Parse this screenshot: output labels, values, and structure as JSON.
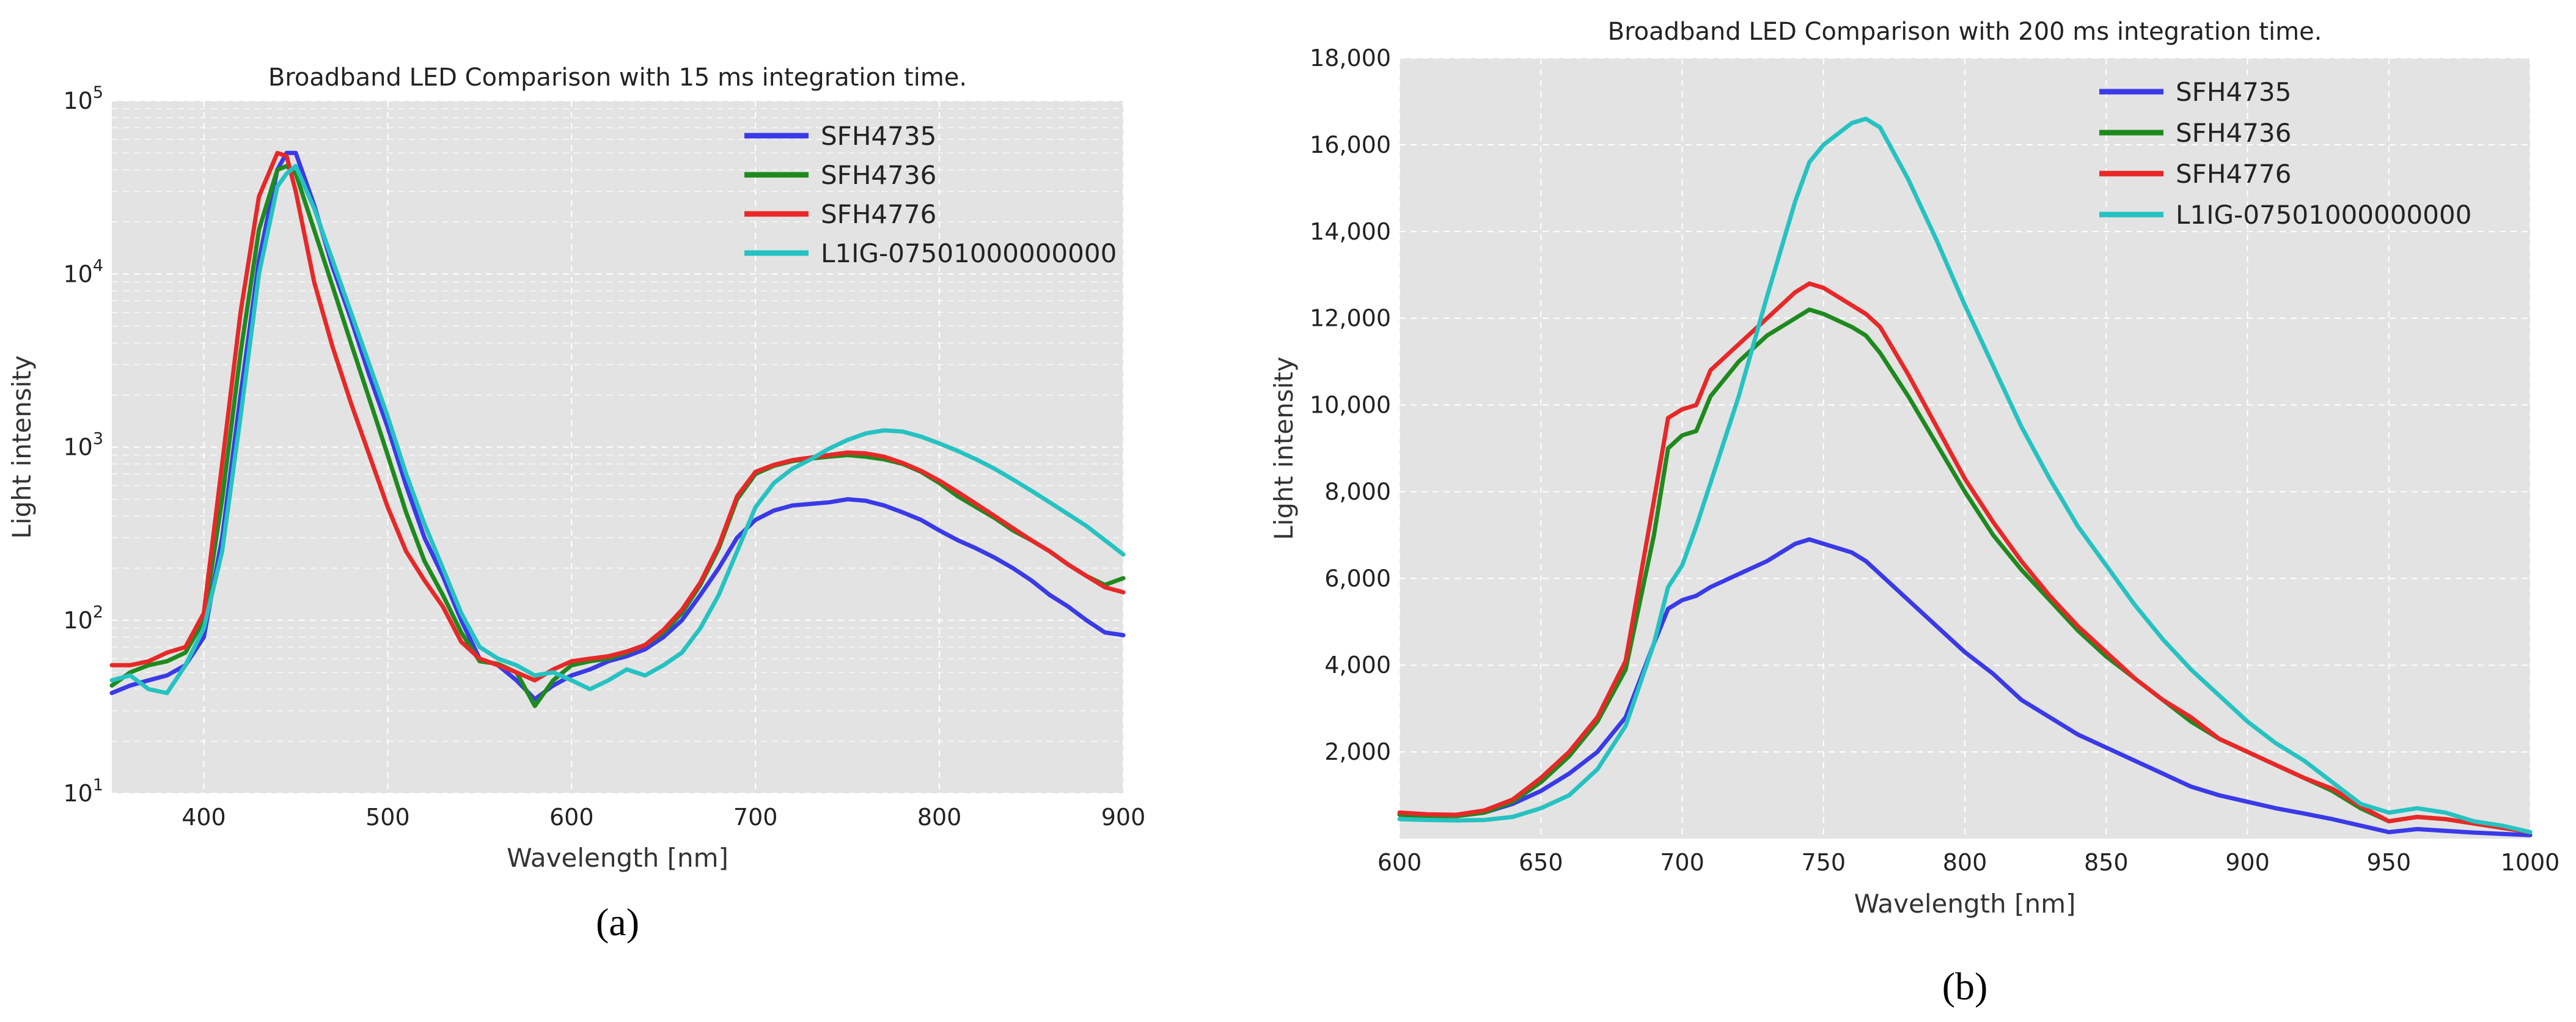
{
  "chart_data": [
    {
      "id": "a",
      "type": "line",
      "panel_label": "(a)",
      "title": "Broadband LED Comparison with 15 ms integration time.",
      "xlabel": "Wavelength [nm]",
      "ylabel": "Light intensity",
      "yscale": "log",
      "xlim": [
        350,
        900
      ],
      "ylim": [
        10,
        100000
      ],
      "grid": true,
      "legend": "top-right",
      "xticks": [
        400,
        500,
        600,
        700,
        800,
        900
      ],
      "yticks": [
        {
          "value": 10,
          "base": "10",
          "exp": "1"
        },
        {
          "value": 100,
          "base": "10",
          "exp": "2"
        },
        {
          "value": 1000,
          "base": "10",
          "exp": "3"
        },
        {
          "value": 10000,
          "base": "10",
          "exp": "4"
        },
        {
          "value": 100000,
          "base": "10",
          "exp": "5"
        }
      ],
      "x": [
        350,
        360,
        370,
        380,
        390,
        400,
        410,
        420,
        430,
        440,
        445,
        450,
        460,
        470,
        480,
        490,
        500,
        510,
        520,
        530,
        540,
        550,
        560,
        570,
        580,
        590,
        600,
        610,
        620,
        630,
        640,
        650,
        660,
        670,
        680,
        690,
        700,
        710,
        720,
        730,
        740,
        750,
        760,
        770,
        780,
        790,
        800,
        810,
        820,
        830,
        840,
        850,
        860,
        870,
        880,
        890,
        900
      ],
      "series": [
        {
          "name": "SFH4735",
          "color": "#3a3ae8",
          "values": [
            38,
            42,
            45,
            48,
            55,
            80,
            300,
            2000,
            12000,
            40000,
            50000,
            50000,
            25000,
            11000,
            5500,
            2600,
            1300,
            600,
            300,
            180,
            100,
            60,
            55,
            45,
            35,
            42,
            48,
            52,
            58,
            62,
            68,
            80,
            100,
            140,
            200,
            300,
            380,
            430,
            460,
            470,
            480,
            500,
            490,
            460,
            420,
            380,
            330,
            290,
            260,
            230,
            200,
            170,
            140,
            120,
            100,
            85,
            82
          ]
        },
        {
          "name": "SFH4736",
          "color": "#1e8a1e",
          "values": [
            42,
            50,
            55,
            58,
            65,
            100,
            500,
            3500,
            18000,
            40000,
            42000,
            38000,
            18000,
            8500,
            4000,
            1900,
            900,
            420,
            220,
            140,
            85,
            58,
            56,
            50,
            32,
            45,
            55,
            58,
            60,
            65,
            72,
            85,
            110,
            160,
            260,
            500,
            700,
            780,
            830,
            860,
            880,
            900,
            880,
            850,
            800,
            720,
            620,
            520,
            450,
            390,
            330,
            290,
            250,
            210,
            180,
            160,
            175
          ]
        },
        {
          "name": "SFH4776",
          "color": "#e82828",
          "values": [
            55,
            55,
            58,
            65,
            70,
            110,
            800,
            6000,
            28000,
            50000,
            48000,
            30000,
            9000,
            3800,
            1800,
            900,
            450,
            250,
            170,
            120,
            75,
            60,
            55,
            50,
            45,
            52,
            58,
            60,
            62,
            66,
            72,
            88,
            115,
            165,
            270,
            520,
            720,
            790,
            840,
            870,
            900,
            930,
            920,
            880,
            810,
            730,
            640,
            550,
            470,
            400,
            340,
            290,
            250,
            210,
            180,
            155,
            145
          ]
        },
        {
          "name": "L1IG-07501000000000",
          "color": "#26c2c2",
          "values": [
            45,
            48,
            40,
            38,
            55,
            90,
            250,
            1500,
            10000,
            32000,
            38000,
            42000,
            24000,
            12000,
            6000,
            3000,
            1500,
            700,
            360,
            200,
            110,
            70,
            60,
            55,
            48,
            50,
            45,
            40,
            45,
            52,
            48,
            55,
            65,
            90,
            140,
            250,
            450,
            620,
            750,
            850,
            980,
            1100,
            1200,
            1250,
            1230,
            1150,
            1050,
            950,
            850,
            750,
            650,
            560,
            480,
            410,
            350,
            290,
            240
          ]
        }
      ]
    },
    {
      "id": "b",
      "type": "line",
      "panel_label": "(b)",
      "title": "Broadband LED Comparison with 200 ms integration time.",
      "xlabel": "Wavelength [nm]",
      "ylabel": "Light intensity",
      "yscale": "linear",
      "xlim": [
        600,
        1000
      ],
      "ylim": [
        0,
        18000
      ],
      "grid": true,
      "legend": "top-right",
      "xticks": [
        600,
        650,
        700,
        750,
        800,
        850,
        900,
        950,
        1000
      ],
      "yticks": [
        {
          "value": 2000,
          "label": "2,000"
        },
        {
          "value": 4000,
          "label": "4,000"
        },
        {
          "value": 6000,
          "label": "6,000"
        },
        {
          "value": 8000,
          "label": "8,000"
        },
        {
          "value": 10000,
          "label": "10,000"
        },
        {
          "value": 12000,
          "label": "12,000"
        },
        {
          "value": 14000,
          "label": "14,000"
        },
        {
          "value": 16000,
          "label": "16,000"
        },
        {
          "value": 18000,
          "label": "18,000"
        }
      ],
      "x": [
        600,
        610,
        620,
        630,
        640,
        650,
        660,
        670,
        680,
        690,
        695,
        700,
        705,
        710,
        720,
        730,
        740,
        745,
        750,
        760,
        765,
        770,
        780,
        790,
        800,
        810,
        820,
        830,
        840,
        850,
        860,
        870,
        880,
        890,
        900,
        910,
        920,
        930,
        940,
        950,
        960,
        970,
        980,
        990,
        1000
      ],
      "series": [
        {
          "name": "SFH4735",
          "color": "#3a3ae8",
          "values": [
            600,
            550,
            520,
            600,
            800,
            1100,
            1500,
            2000,
            2800,
            4500,
            5300,
            5500,
            5600,
            5800,
            6100,
            6400,
            6800,
            6900,
            6800,
            6600,
            6400,
            6100,
            5500,
            4900,
            4300,
            3800,
            3200,
            2800,
            2400,
            2100,
            1800,
            1500,
            1200,
            1000,
            850,
            700,
            580,
            450,
            300,
            150,
            220,
            180,
            140,
            110,
            80
          ]
        },
        {
          "name": "SFH4736",
          "color": "#1e8a1e",
          "values": [
            550,
            520,
            520,
            600,
            850,
            1300,
            1900,
            2700,
            3900,
            7000,
            9000,
            9300,
            9400,
            10200,
            11000,
            11600,
            12000,
            12200,
            12100,
            11800,
            11600,
            11200,
            10200,
            9100,
            8000,
            7000,
            6200,
            5500,
            4800,
            4200,
            3700,
            3200,
            2700,
            2300,
            2000,
            1700,
            1400,
            1100,
            700,
            400,
            500,
            450,
            350,
            250,
            150
          ]
        },
        {
          "name": "SFH4776",
          "color": "#e82828",
          "values": [
            600,
            560,
            550,
            650,
            900,
            1400,
            2000,
            2800,
            4100,
            7800,
            9700,
            9900,
            10000,
            10800,
            11400,
            12000,
            12600,
            12800,
            12700,
            12300,
            12100,
            11800,
            10700,
            9500,
            8300,
            7300,
            6400,
            5600,
            4900,
            4300,
            3700,
            3200,
            2800,
            2300,
            2000,
            1700,
            1400,
            1150,
            750,
            400,
            500,
            450,
            350,
            250,
            150
          ]
        },
        {
          "name": "L1IG-07501000000000",
          "color": "#26c2c2",
          "values": [
            450,
            430,
            420,
            430,
            500,
            700,
            1000,
            1600,
            2600,
            4500,
            5800,
            6300,
            7200,
            8200,
            10200,
            12500,
            14700,
            15600,
            16000,
            16500,
            16600,
            16400,
            15200,
            13800,
            12300,
            10900,
            9500,
            8300,
            7200,
            6300,
            5400,
            4600,
            3900,
            3300,
            2700,
            2200,
            1800,
            1300,
            800,
            600,
            700,
            600,
            400,
            300,
            150
          ]
        }
      ]
    }
  ]
}
